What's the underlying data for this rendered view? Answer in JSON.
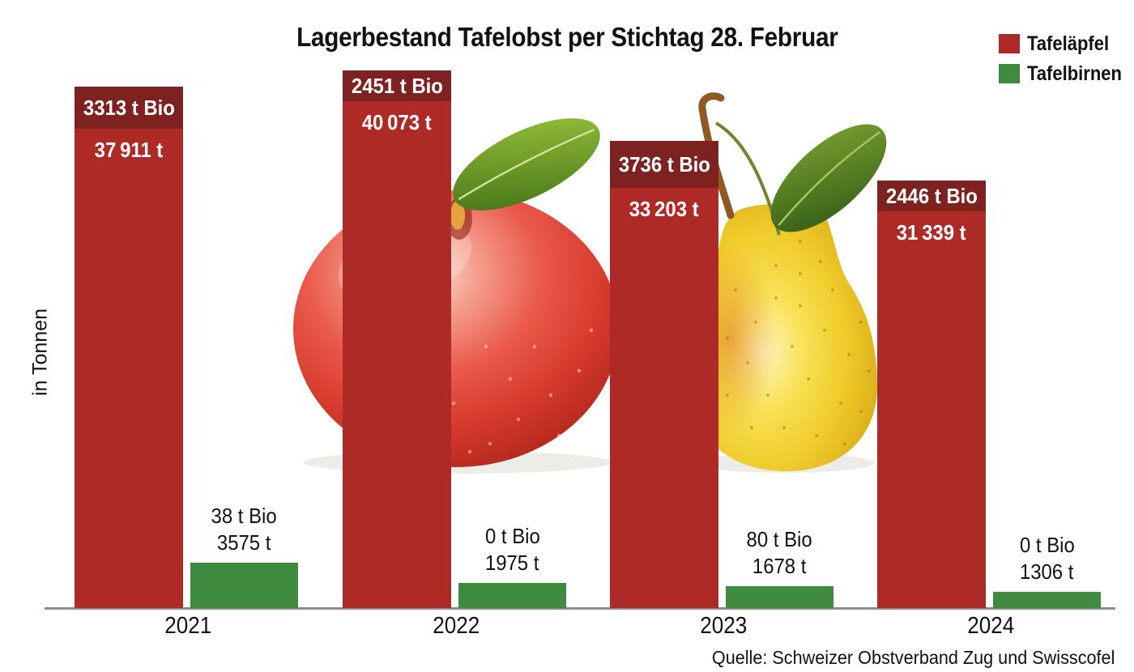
{
  "title": "Lagerbestand Tafelobst per Stichtag 28. Februar",
  "y_axis_label": "in Tonnen",
  "source": "Quelle: Schweizer Obstverband Zug und Swisscofel",
  "legend": {
    "items": [
      {
        "label": "Tafeläpfel",
        "color": "#ad2a27"
      },
      {
        "label": "Tafelbirnen",
        "color": "#3e8b3f"
      }
    ]
  },
  "colors": {
    "apples": "#ad2a27",
    "apples_bio": "#7d2220",
    "pears": "#3e8b3f",
    "bar_label_text": "#ffffff",
    "outside_label_text": "#111111",
    "axis_line": "#8d8d8d"
  },
  "chart_data": {
    "type": "bar",
    "title": "Lagerbestand Tafelobst per Stichtag 28. Februar",
    "ylabel": "in Tonnen",
    "unit": "Tonnen",
    "grid": false,
    "legend_position": "top-right",
    "categories": [
      "2021",
      "2022",
      "2023",
      "2024"
    ],
    "series": [
      {
        "name": "Tafeläpfel",
        "color": "#ad2a27",
        "bio_color": "#7d2220",
        "values": [
          37911,
          40073,
          33203,
          31339
        ],
        "bio_values": [
          3313,
          2451,
          3736,
          2446
        ],
        "value_labels": [
          "37 911 t",
          "40 073 t",
          "33 203 t",
          "31 339 t"
        ],
        "bio_labels": [
          "3313 t Bio",
          "2451 t Bio",
          "3736 t Bio",
          "2446 t Bio"
        ],
        "label_placement": "inside"
      },
      {
        "name": "Tafelbirnen",
        "color": "#3e8b3f",
        "values": [
          3575,
          1975,
          1678,
          1306
        ],
        "bio_values": [
          38,
          0,
          80,
          0
        ],
        "value_labels": [
          "3575 t",
          "1975 t",
          "1678 t",
          "1306 t"
        ],
        "bio_labels": [
          "38 t Bio",
          "0 t Bio",
          "80 t Bio",
          "0 t Bio"
        ],
        "label_placement": "above"
      }
    ]
  }
}
